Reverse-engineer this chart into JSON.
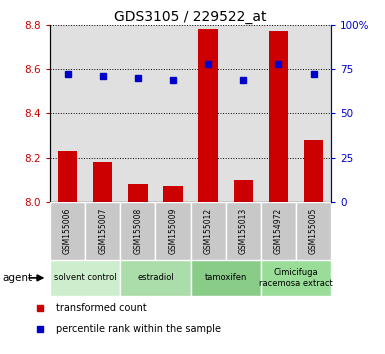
{
  "title": "GDS3105 / 229522_at",
  "samples": [
    "GSM155006",
    "GSM155007",
    "GSM155008",
    "GSM155009",
    "GSM155012",
    "GSM155013",
    "GSM154972",
    "GSM155005"
  ],
  "bar_values": [
    8.23,
    8.18,
    8.08,
    8.07,
    8.78,
    8.1,
    8.77,
    8.28
  ],
  "percentile_values": [
    72,
    71,
    70,
    69,
    78,
    69,
    78,
    72
  ],
  "ylim_left": [
    8.0,
    8.8
  ],
  "ylim_right": [
    0,
    100
  ],
  "yticks_left": [
    8.0,
    8.2,
    8.4,
    8.6,
    8.8
  ],
  "yticks_right": [
    0,
    25,
    50,
    75,
    100
  ],
  "bar_color": "#cc0000",
  "dot_color": "#0000cc",
  "bar_width": 0.55,
  "agents": [
    {
      "label": "solvent control",
      "start": 0,
      "end": 2,
      "color": "#cceecc"
    },
    {
      "label": "estradiol",
      "start": 2,
      "end": 4,
      "color": "#aaddaa"
    },
    {
      "label": "tamoxifen",
      "start": 4,
      "end": 6,
      "color": "#88cc88"
    },
    {
      "label": "Cimicifuga\nracemosa extract",
      "start": 6,
      "end": 8,
      "color": "#99dd99"
    }
  ],
  "legend_items": [
    {
      "label": "transformed count",
      "color": "#cc0000"
    },
    {
      "label": "percentile rank within the sample",
      "color": "#0000cc"
    }
  ],
  "agent_label": "agent",
  "plot_bg": "#e0e0e0",
  "fig_bg": "#ffffff",
  "sample_box_color": "#c8c8c8"
}
